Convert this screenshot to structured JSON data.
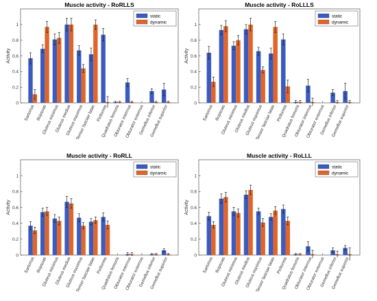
{
  "colors": {
    "static": "#3a5bbf",
    "dynamic": "#e0652a",
    "axis": "#333333",
    "grid": "#e6e6e6",
    "title": "#000000"
  },
  "chart_data": [
    {
      "type": "bar",
      "title": "Muscle activity - RoRLLS",
      "ylabel": "Activity",
      "xlabel": "",
      "ylim": [
        0,
        1.2
      ],
      "yticks": [
        "0",
        "0.2",
        "0.4",
        "0.6",
        "0.8",
        "1"
      ],
      "grid": false,
      "legend_position": "top-right",
      "categories": [
        "Sartorius",
        "Iliopsoas",
        "Gluteus minimus",
        "Gluteus medius",
        "Gluteus maximus",
        "Tensor fasciae latae",
        "Piriformis",
        "Quadratus femoris",
        "Obturator internus",
        "Obturator externus",
        "Gemellus inferior",
        "Gemellus superior"
      ],
      "series": [
        {
          "name": "static",
          "values": [
            0.57,
            0.69,
            0.81,
            1.0,
            0.67,
            0.62,
            0.87,
            0.01,
            0.26,
            0.0,
            0.15,
            0.17
          ],
          "errors": [
            0.07,
            0.05,
            0.07,
            0.08,
            0.06,
            0.08,
            0.08,
            0.01,
            0.05,
            0.0,
            0.03,
            0.08
          ]
        },
        {
          "name": "dynamic",
          "values": [
            0.11,
            0.97,
            0.83,
            1.0,
            0.44,
            1.0,
            0.01,
            0.01,
            0.01,
            0.0,
            0.01,
            0.01
          ],
          "errors": [
            0.06,
            0.07,
            0.07,
            0.08,
            0.05,
            0.06,
            0.07,
            0.01,
            0.01,
            0.0,
            0.01,
            0.01
          ]
        }
      ]
    },
    {
      "type": "bar",
      "title": "Muscle activity - RoLLLS",
      "ylabel": "Activity",
      "xlabel": "",
      "ylim": [
        0,
        1.2
      ],
      "yticks": [
        "0",
        "0.2",
        "0.4",
        "0.6",
        "0.8",
        "1"
      ],
      "grid": false,
      "legend_position": "top-right",
      "categories": [
        "Sartorius",
        "Iliopsoas",
        "Gluteus minimus",
        "Gluteus medius",
        "Gluteus maximus",
        "Tensor fasciae latae",
        "Piriformis",
        "Quadratus femoris",
        "Obturator internus",
        "Obturator externus",
        "Gemellus inferior",
        "Gemellus superior"
      ],
      "series": [
        {
          "name": "static",
          "values": [
            0.64,
            0.93,
            0.73,
            0.94,
            0.66,
            0.63,
            0.81,
            0.01,
            0.22,
            0.0,
            0.13,
            0.15
          ],
          "errors": [
            0.08,
            0.06,
            0.05,
            0.06,
            0.05,
            0.07,
            0.07,
            0.02,
            0.08,
            0.0,
            0.04,
            0.1
          ]
        },
        {
          "name": "dynamic",
          "values": [
            0.27,
            0.98,
            0.8,
            1.0,
            0.42,
            0.97,
            0.21,
            0.01,
            0.01,
            0.0,
            0.01,
            0.01
          ],
          "errors": [
            0.06,
            0.07,
            0.06,
            0.08,
            0.04,
            0.07,
            0.08,
            0.02,
            0.05,
            0.0,
            0.02,
            0.02
          ]
        }
      ]
    },
    {
      "type": "bar",
      "title": "Muscle activity - RoRLL",
      "ylabel": "Activity",
      "xlabel": "",
      "ylim": [
        0,
        1.2
      ],
      "yticks": [
        "0",
        "0.2",
        "0.4",
        "0.6",
        "0.8",
        "1"
      ],
      "grid": false,
      "legend_position": "top-right",
      "categories": [
        "Sartorius",
        "Iliopsoas",
        "Gluteus minimus",
        "Gluteus medius",
        "Gluteus maximus",
        "Tensor fasciae latae",
        "Piriformis",
        "Quadratus femoris",
        "Obturator internus",
        "Obturator externus",
        "Gemellus inferior",
        "Gemellus superior"
      ],
      "series": [
        {
          "name": "static",
          "values": [
            0.37,
            0.54,
            0.46,
            0.67,
            0.47,
            0.42,
            0.48,
            0.0,
            0.01,
            0.0,
            0.01,
            0.06
          ],
          "errors": [
            0.05,
            0.05,
            0.05,
            0.07,
            0.05,
            0.04,
            0.05,
            0.0,
            0.02,
            0.0,
            0.01,
            0.02
          ]
        },
        {
          "name": "dynamic",
          "values": [
            0.31,
            0.55,
            0.43,
            0.65,
            0.37,
            0.44,
            0.38,
            0.0,
            0.01,
            0.0,
            0.01,
            0.01
          ],
          "errors": [
            0.04,
            0.05,
            0.05,
            0.06,
            0.04,
            0.04,
            0.05,
            0.0,
            0.02,
            0.0,
            0.01,
            0.01
          ]
        }
      ]
    },
    {
      "type": "bar",
      "title": "Muscle activity - RoLLL",
      "ylabel": "Activity",
      "xlabel": "",
      "ylim": [
        0,
        1.2
      ],
      "yticks": [
        "0",
        "0.2",
        "0.4",
        "0.6",
        "0.8",
        "1"
      ],
      "grid": false,
      "legend_position": "top-right",
      "categories": [
        "Sartorius",
        "Iliopsoas",
        "Gluteus minimus",
        "Gluteus medius",
        "Gluteus maximus",
        "Tensor fasciae latae",
        "Piriformis",
        "Quadratus femoris",
        "Obturator internus",
        "Obturator externus",
        "Gemellus inferior",
        "Gemellus superior"
      ],
      "series": [
        {
          "name": "static",
          "values": [
            0.49,
            0.71,
            0.55,
            0.76,
            0.55,
            0.48,
            0.58,
            0.01,
            0.11,
            0.0,
            0.06,
            0.09
          ],
          "errors": [
            0.05,
            0.06,
            0.05,
            0.05,
            0.04,
            0.04,
            0.05,
            0.01,
            0.06,
            0.0,
            0.03,
            0.03
          ]
        },
        {
          "name": "dynamic",
          "values": [
            0.38,
            0.73,
            0.53,
            0.82,
            0.41,
            0.56,
            0.43,
            0.01,
            0.01,
            0.0,
            0.01,
            0.01
          ],
          "errors": [
            0.04,
            0.06,
            0.05,
            0.06,
            0.05,
            0.05,
            0.05,
            0.01,
            0.05,
            0.0,
            0.04,
            0.08
          ]
        }
      ]
    }
  ]
}
